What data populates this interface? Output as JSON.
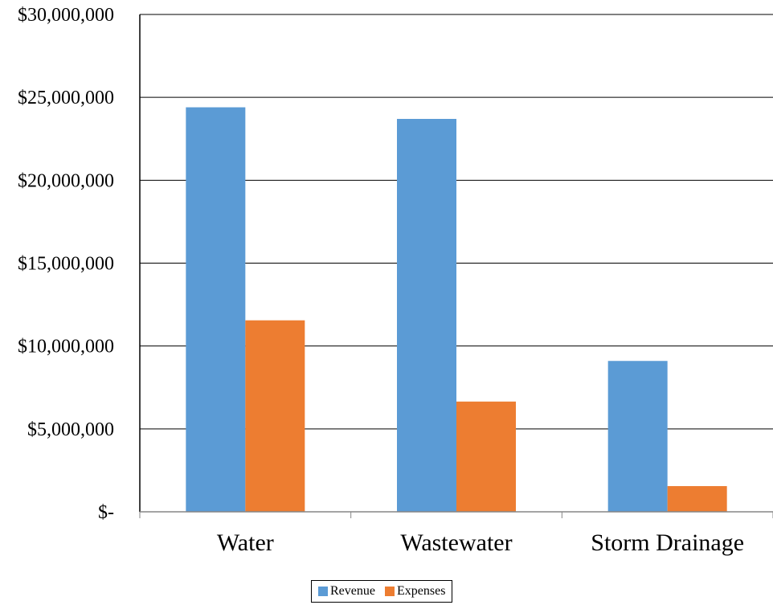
{
  "chart_data": {
    "type": "bar",
    "title": "",
    "xlabel": "",
    "ylabel": "",
    "categories": [
      "Water",
      "Wastewater",
      "Storm Drainage"
    ],
    "series": [
      {
        "name": "Revenue",
        "color": "#5B9BD5",
        "values": [
          24400000,
          23700000,
          9100000
        ]
      },
      {
        "name": "Expenses",
        "color": "#ED7D31",
        "values": [
          11550000,
          6650000,
          1550000
        ]
      }
    ],
    "ylim": [
      0,
      30000000
    ],
    "yticks": [
      0,
      5000000,
      10000000,
      15000000,
      20000000,
      25000000,
      30000000
    ],
    "ytick_labels": [
      "$-",
      "$5,000,000",
      "$10,000,000",
      "$15,000,000",
      "$20,000,000",
      "$25,000,000",
      "$30,000,000"
    ],
    "grid": true,
    "legend_position": "bottom"
  }
}
